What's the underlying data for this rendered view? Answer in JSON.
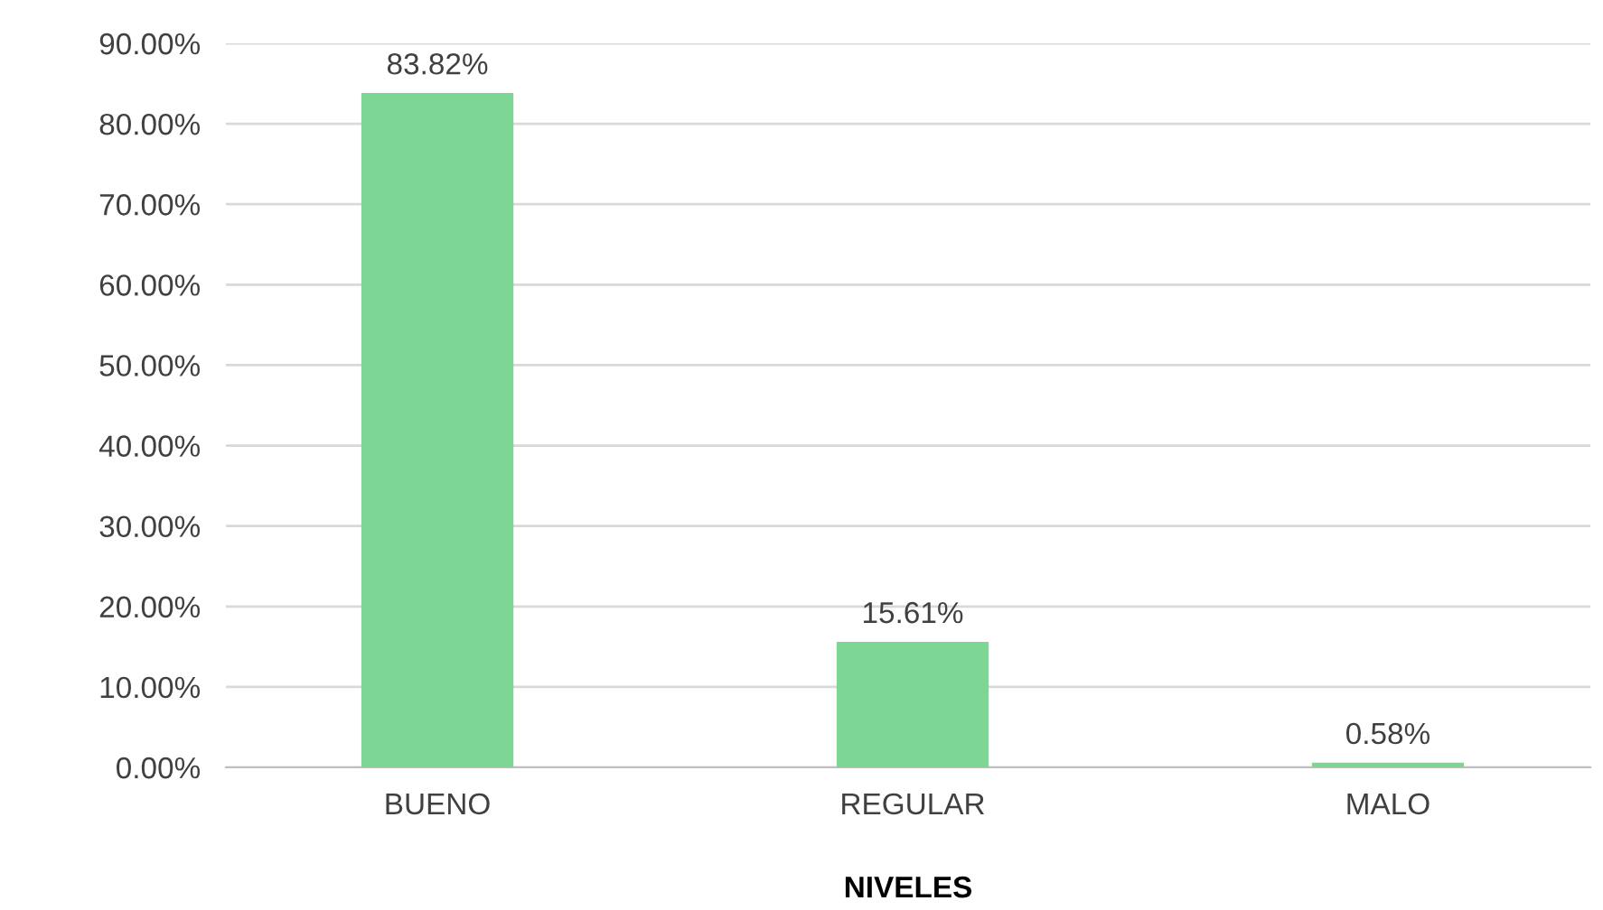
{
  "chart_data": {
    "type": "bar",
    "xlabel": "NIVELES",
    "categories": [
      "BUENO",
      "REGULAR",
      "MALO"
    ],
    "values": [
      83.82,
      15.61,
      0.58
    ],
    "color": "#7dd694",
    "value_labels": [
      "83.82%",
      "15.61%",
      "0.58%"
    ],
    "ylim": [
      0,
      90
    ],
    "yticks": [
      {
        "value": 0,
        "label": "0.00%"
      },
      {
        "value": 10,
        "label": "10.00%"
      },
      {
        "value": 20,
        "label": "20.00%"
      },
      {
        "value": 30,
        "label": "30.00%"
      },
      {
        "value": 40,
        "label": "40.00%"
      },
      {
        "value": 50,
        "label": "50.00%"
      },
      {
        "value": 60,
        "label": "60.00%"
      },
      {
        "value": 70,
        "label": "70.00%"
      },
      {
        "value": 80,
        "label": "80.00%"
      },
      {
        "value": 90,
        "label": "90.00%"
      }
    ],
    "grid": "y",
    "legend": false
  }
}
